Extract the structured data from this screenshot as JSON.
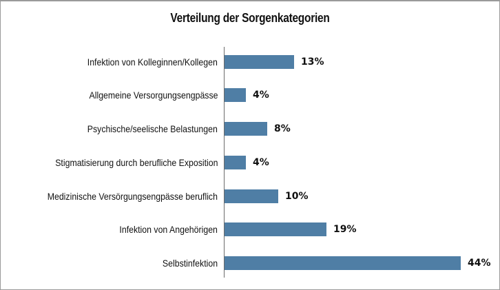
{
  "chart_data": {
    "type": "bar",
    "orientation": "horizontal",
    "title": "Verteilung der Sorgenkategorien",
    "xlabel": "",
    "ylabel": "",
    "categories": [
      "Infektion von Kolleginnen/Kollegen",
      "Allgemeine Versorgungsengpässe",
      "Psychische/seelische Belastungen",
      "Stigmatisierung durch berufliche Exposition",
      "Medizinische Versörgungsengpässe beruflich",
      "Infektion von Angehörigen",
      "Selbstinfektion"
    ],
    "values": [
      13,
      4,
      8,
      4,
      10,
      19,
      44
    ],
    "value_labels": [
      "13%",
      "4%",
      "8%",
      "4%",
      "10%",
      "19%",
      "44%"
    ],
    "unit": "%",
    "xlim": [
      0,
      45
    ],
    "grid": false,
    "legend": null,
    "bar_color": "#4f7ea5"
  },
  "rows": [
    {
      "label": "Infektion von Kolleginnen/Kollegen",
      "value": "13%"
    },
    {
      "label": "Allgemeine Versorgungsengpässe",
      "value": "4%"
    },
    {
      "label": "Psychische/seelische Belastungen",
      "value": "8%"
    },
    {
      "label": "Stigmatisierung durch berufliche Exposition",
      "value": "4%"
    },
    {
      "label": "Medizinische Versörgungsengpässe beruflich",
      "value": "10%"
    },
    {
      "label": "Infektion von Angehörigen",
      "value": "19%"
    },
    {
      "label": "Selbstinfektion",
      "value": "44%"
    }
  ]
}
